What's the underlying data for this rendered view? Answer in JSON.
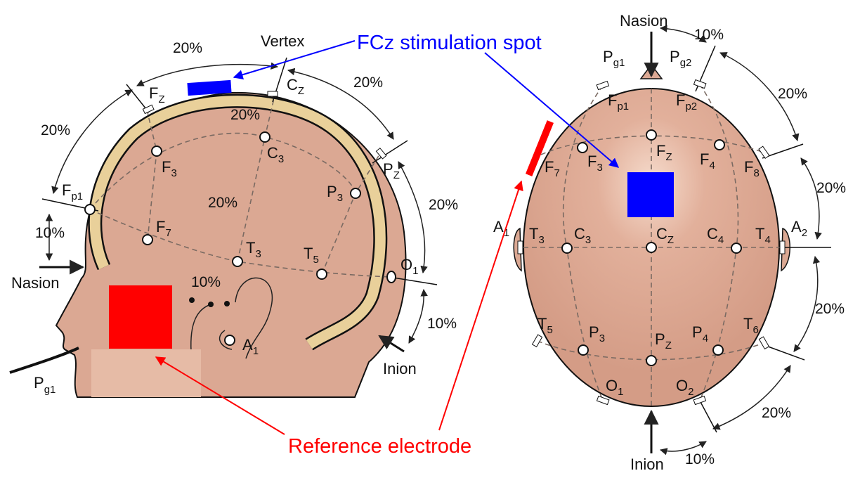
{
  "colors": {
    "skin": "#dba893",
    "skull": "#e9d09a",
    "stimulation": "#0000ff",
    "reference": "#ff0000",
    "reference_pad": "#e6bba6"
  },
  "annotations": {
    "stimulation_label": "FCz stimulation spot",
    "reference_label": "Reference electrode"
  },
  "side_view": {
    "landmarks": {
      "vertex": "Vertex",
      "nasion": "Nasion",
      "inion": "Inion"
    },
    "electrodes": {
      "fz": {
        "main": "F",
        "sub": "Z"
      },
      "cz": {
        "main": "C",
        "sub": "Z"
      },
      "pz": {
        "main": "P",
        "sub": "Z"
      },
      "fp1": {
        "main": "F",
        "sub": "p1"
      },
      "f3": {
        "main": "F",
        "sub": "3"
      },
      "c3": {
        "main": "C",
        "sub": "3"
      },
      "p3": {
        "main": "P",
        "sub": "3"
      },
      "f7": {
        "main": "F",
        "sub": "7"
      },
      "t3": {
        "main": "T",
        "sub": "3"
      },
      "t5": {
        "main": "T",
        "sub": "5"
      },
      "o1": {
        "main": "O",
        "sub": "1"
      },
      "a1": {
        "main": "A",
        "sub": "1"
      },
      "pg1": {
        "main": "P",
        "sub": "g1"
      }
    },
    "percentages": {
      "top_left": "20%",
      "top_right": "20%",
      "left": "20%",
      "skull": "20%",
      "inner": "20%",
      "nasion": "10%",
      "right": "20%",
      "inion": "10%",
      "ear": "10%"
    }
  },
  "top_view": {
    "landmarks": {
      "nasion": "Nasion",
      "inion": "Inion"
    },
    "electrodes": {
      "pg1": {
        "main": "P",
        "sub": "g1"
      },
      "pg2": {
        "main": "P",
        "sub": "g2"
      },
      "fp1": {
        "main": "F",
        "sub": "p1"
      },
      "fp2": {
        "main": "F",
        "sub": "p2"
      },
      "f7": {
        "main": "F",
        "sub": "7"
      },
      "f3": {
        "main": "F",
        "sub": "3"
      },
      "fz": {
        "main": "F",
        "sub": "Z"
      },
      "f4": {
        "main": "F",
        "sub": "4"
      },
      "f8": {
        "main": "F",
        "sub": "8"
      },
      "a1": {
        "main": "A",
        "sub": "1"
      },
      "t3": {
        "main": "T",
        "sub": "3"
      },
      "c3": {
        "main": "C",
        "sub": "3"
      },
      "cz": {
        "main": "C",
        "sub": "Z"
      },
      "c4": {
        "main": "C",
        "sub": "4"
      },
      "t4": {
        "main": "T",
        "sub": "4"
      },
      "a2": {
        "main": "A",
        "sub": "2"
      },
      "t5": {
        "main": "T",
        "sub": "5"
      },
      "p3": {
        "main": "P",
        "sub": "3"
      },
      "pz": {
        "main": "P",
        "sub": "Z"
      },
      "p4": {
        "main": "P",
        "sub": "4"
      },
      "t6": {
        "main": "T",
        "sub": "6"
      },
      "o1": {
        "main": "O",
        "sub": "1"
      },
      "o2": {
        "main": "O",
        "sub": "2"
      }
    },
    "percentages": {
      "top": "10%",
      "upper_right": "20%",
      "right_mid": "20%",
      "right_lower": "20%",
      "lower_right": "20%",
      "bottom": "10%"
    }
  }
}
